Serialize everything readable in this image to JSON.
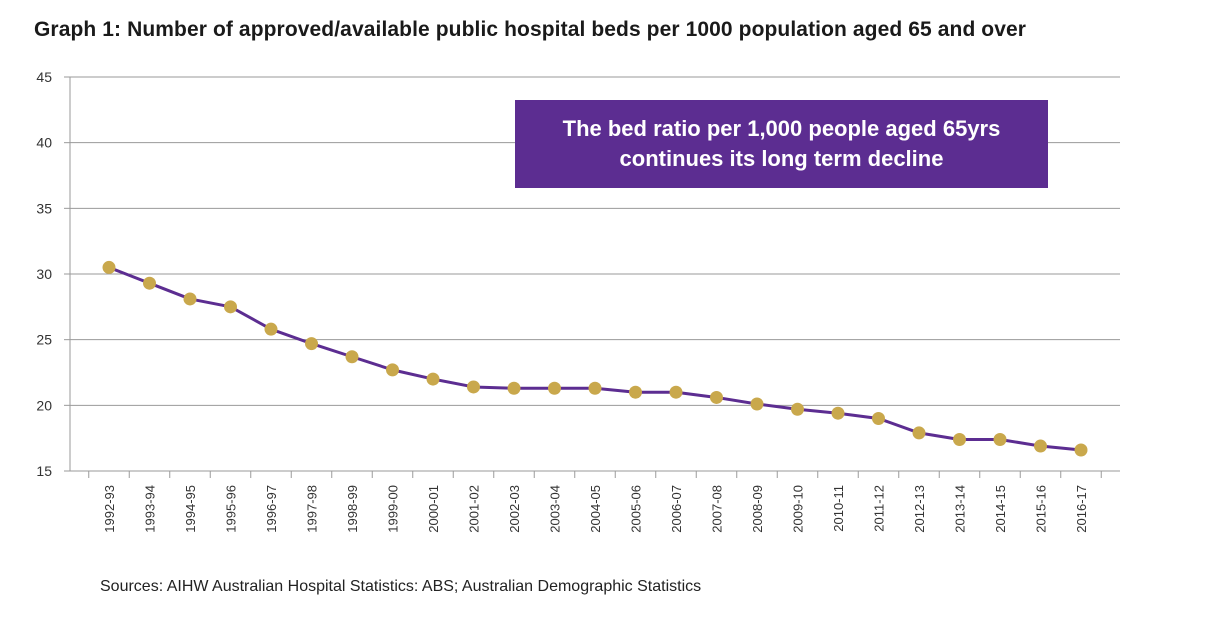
{
  "chart_data": {
    "type": "line",
    "title": "Graph 1:   Number of approved/available public hospital beds per 1000 population aged 65 and over",
    "categories": [
      "1992-93",
      "1993-94",
      "1994-95",
      "1995-96",
      "1996-97",
      "1997-98",
      "1998-99",
      "1999-00",
      "2000-01",
      "2001-02",
      "2002-03",
      "2003-04",
      "2004-05",
      "2005-06",
      "2006-07",
      "2007-08",
      "2008-09",
      "2009-10",
      "2010-11",
      "2011-12",
      "2012-13",
      "2013-14",
      "2014-15",
      "2015-16",
      "2016-17"
    ],
    "series": [
      {
        "values": [
          30.5,
          29.3,
          28.1,
          27.5,
          25.8,
          24.7,
          23.7,
          22.7,
          22.0,
          21.4,
          21.3,
          21.3,
          21.3,
          21.0,
          21.0,
          20.6,
          20.1,
          19.7,
          19.4,
          19.0,
          17.9,
          17.4,
          17.4,
          16.9,
          16.6
        ]
      }
    ],
    "yticks": [
      15,
      20,
      25,
      30,
      35,
      40,
      45
    ],
    "ylim": [
      15,
      45
    ],
    "grid": true,
    "line_color": "#5c2d91",
    "marker_color": "#c9a84c",
    "annotation": [
      "The bed ratio per 1,000 people aged 65yrs",
      "continues its long term decline"
    ],
    "annotation_color": "#5c2d91",
    "source": "Sources: AIHW Australian Hospital Statistics: ABS; Australian Demographic Statistics"
  }
}
